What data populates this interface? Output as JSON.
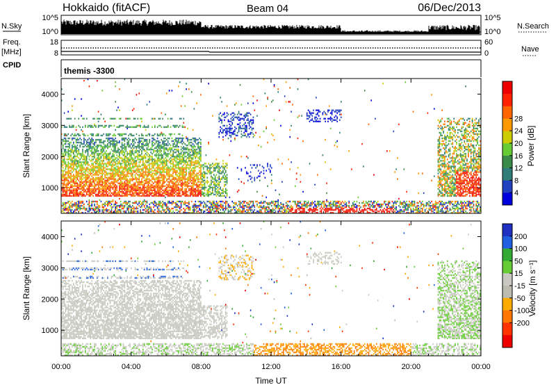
{
  "header": {
    "station_label": "Hokkaido (fitACF)",
    "beam_label": "Beam 04",
    "date_label": "06/Dec/2013"
  },
  "strips": {
    "nsky": {
      "label": "N.Sky",
      "right_label": "N.Search",
      "ticks": [
        "10^5",
        "10^0"
      ],
      "right_ticks": [
        "10^5",
        "10^0"
      ]
    },
    "freq": {
      "label_top": "Freq.",
      "label_bottom": "[MHz]",
      "right_label": "Nave",
      "ticks": [
        "18",
        "8"
      ],
      "right_ticks": [
        "60",
        "0"
      ]
    },
    "cpid": {
      "label": "CPID",
      "value": "themis -3300"
    }
  },
  "colors": {
    "power": [
      "#0000dd",
      "#2040c0",
      "#2e7d7a",
      "#3a8a4a",
      "#66cc33",
      "#cccc00",
      "#ff9900",
      "#ff6600",
      "#ff2200",
      "#ee0000"
    ],
    "velocity": [
      "#2030c0",
      "#2060e0",
      "#33aa33",
      "#66cc33",
      "#c8c8c0",
      "#bbbbb0",
      "#ffaa00",
      "#ff7700",
      "#ff3300",
      "#ee0000"
    ]
  },
  "chart_data": [
    {
      "type": "heatmap",
      "panel": "power",
      "xlabel": "",
      "ylabel": "Slant Range [km]",
      "yticks": [
        "1000",
        "2000",
        "3000",
        "4000"
      ],
      "ylim": [
        180,
        4500
      ],
      "xlim": [
        "00:00",
        "24:00"
      ],
      "colorbar": {
        "label": "Power [dB]",
        "ticks": [
          "4",
          "8",
          "12",
          "16",
          "20",
          "24",
          "28"
        ],
        "range": [
          0,
          32
        ]
      }
    },
    {
      "type": "heatmap",
      "panel": "velocity",
      "xlabel": "Time UT",
      "ylabel": "Slant Range [km]",
      "yticks": [
        "1000",
        "2000",
        "3000",
        "4000"
      ],
      "ylim": [
        180,
        4500
      ],
      "xticks": [
        "00:00",
        "04:00",
        "08:00",
        "12:00",
        "16:00",
        "20:00",
        "00:00"
      ],
      "colorbar": {
        "label": "Velocity [m s⁻¹]",
        "ticks": [
          "200",
          "100",
          "50",
          "15",
          "-15",
          "-50",
          "-100",
          "-200"
        ],
        "range": [
          -250,
          250
        ]
      }
    }
  ]
}
